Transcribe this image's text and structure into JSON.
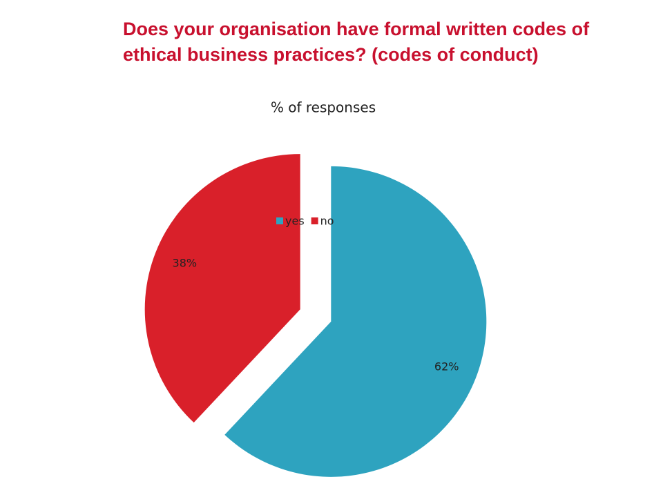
{
  "chart_data": {
    "type": "pie",
    "title": "Does your organisation have formal written codes of ethical business practices? (codes of conduct)",
    "subtitle": "% of responses",
    "categories": [
      "yes",
      "no"
    ],
    "values": [
      62,
      38
    ],
    "value_labels": [
      "62%",
      "38%"
    ],
    "colors": [
      "#2ea3bf",
      "#d9202a"
    ],
    "legend": "top",
    "exploded": true
  }
}
